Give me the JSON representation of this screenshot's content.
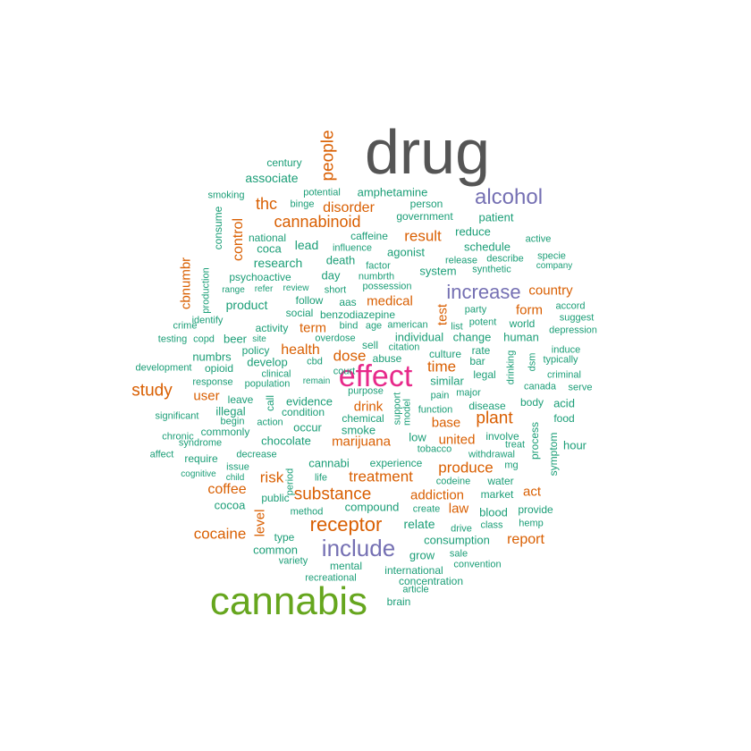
{
  "colors": {
    "tier1": "#555555",
    "tier2": "#e7298a",
    "tier3": "#66a61e",
    "tier4": "#7570b3",
    "tier5": "#d95f02",
    "tier6": "#1b9e77"
  },
  "words": [
    {
      "text": "drug",
      "color": "tier1"
    },
    {
      "text": "cannabis",
      "color": "tier3"
    },
    {
      "text": "effect",
      "color": "tier2"
    },
    {
      "text": "alcohol",
      "color": "tier4"
    },
    {
      "text": "increase",
      "color": "tier4"
    },
    {
      "text": "include",
      "color": "tier4"
    },
    {
      "text": "people",
      "color": "tier5"
    },
    {
      "text": "thc",
      "color": "tier5"
    },
    {
      "text": "disorder",
      "color": "tier5"
    },
    {
      "text": "cannabinoid",
      "color": "tier5"
    },
    {
      "text": "control",
      "color": "tier5"
    },
    {
      "text": "result",
      "color": "tier5"
    },
    {
      "text": "cbnumbr",
      "color": "tier5"
    },
    {
      "text": "country",
      "color": "tier5"
    },
    {
      "text": "medical",
      "color": "tier5"
    },
    {
      "text": "test",
      "color": "tier5"
    },
    {
      "text": "form",
      "color": "tier5"
    },
    {
      "text": "term",
      "color": "tier5"
    },
    {
      "text": "health",
      "color": "tier5"
    },
    {
      "text": "dose",
      "color": "tier5"
    },
    {
      "text": "time",
      "color": "tier5"
    },
    {
      "text": "study",
      "color": "tier5"
    },
    {
      "text": "user",
      "color": "tier5"
    },
    {
      "text": "drink",
      "color": "tier5"
    },
    {
      "text": "plant",
      "color": "tier5"
    },
    {
      "text": "base",
      "color": "tier5"
    },
    {
      "text": "marijuana",
      "color": "tier5"
    },
    {
      "text": "united",
      "color": "tier5"
    },
    {
      "text": "risk",
      "color": "tier5"
    },
    {
      "text": "treatment",
      "color": "tier5"
    },
    {
      "text": "produce",
      "color": "tier5"
    },
    {
      "text": "coffee",
      "color": "tier5"
    },
    {
      "text": "substance",
      "color": "tier5"
    },
    {
      "text": "addiction",
      "color": "tier5"
    },
    {
      "text": "act",
      "color": "tier5"
    },
    {
      "text": "law",
      "color": "tier5"
    },
    {
      "text": "receptor",
      "color": "tier5"
    },
    {
      "text": "cocaine",
      "color": "tier5"
    },
    {
      "text": "level",
      "color": "tier5"
    },
    {
      "text": "report",
      "color": "tier5"
    },
    {
      "text": "century",
      "color": "tier6"
    },
    {
      "text": "associate",
      "color": "tier6"
    },
    {
      "text": "smoking",
      "color": "tier6"
    },
    {
      "text": "potential",
      "color": "tier6"
    },
    {
      "text": "amphetamine",
      "color": "tier6"
    },
    {
      "text": "binge",
      "color": "tier6"
    },
    {
      "text": "person",
      "color": "tier6"
    },
    {
      "text": "government",
      "color": "tier6"
    },
    {
      "text": "patient",
      "color": "tier6"
    },
    {
      "text": "consume",
      "color": "tier6"
    },
    {
      "text": "national",
      "color": "tier6"
    },
    {
      "text": "caffeine",
      "color": "tier6"
    },
    {
      "text": "reduce",
      "color": "tier6"
    },
    {
      "text": "active",
      "color": "tier6"
    },
    {
      "text": "coca",
      "color": "tier6"
    },
    {
      "text": "lead",
      "color": "tier6"
    },
    {
      "text": "influence",
      "color": "tier6"
    },
    {
      "text": "agonist",
      "color": "tier6"
    },
    {
      "text": "schedule",
      "color": "tier6"
    },
    {
      "text": "specie",
      "color": "tier6"
    },
    {
      "text": "research",
      "color": "tier6"
    },
    {
      "text": "death",
      "color": "tier6"
    },
    {
      "text": "release",
      "color": "tier6"
    },
    {
      "text": "describe",
      "color": "tier6"
    },
    {
      "text": "company",
      "color": "tier6"
    },
    {
      "text": "factor",
      "color": "tier6"
    },
    {
      "text": "system",
      "color": "tier6"
    },
    {
      "text": "synthetic",
      "color": "tier6"
    },
    {
      "text": "psychoactive",
      "color": "tier6"
    },
    {
      "text": "day",
      "color": "tier6"
    },
    {
      "text": "numbrth",
      "color": "tier6"
    },
    {
      "text": "production",
      "color": "tier6"
    },
    {
      "text": "range",
      "color": "tier6"
    },
    {
      "text": "refer",
      "color": "tier6"
    },
    {
      "text": "review",
      "color": "tier6"
    },
    {
      "text": "short",
      "color": "tier6"
    },
    {
      "text": "possession",
      "color": "tier6"
    },
    {
      "text": "product",
      "color": "tier6"
    },
    {
      "text": "follow",
      "color": "tier6"
    },
    {
      "text": "aas",
      "color": "tier6"
    },
    {
      "text": "accord",
      "color": "tier6"
    },
    {
      "text": "party",
      "color": "tier6"
    },
    {
      "text": "social",
      "color": "tier6"
    },
    {
      "text": "benzodiazepine",
      "color": "tier6"
    },
    {
      "text": "identify",
      "color": "tier6"
    },
    {
      "text": "potent",
      "color": "tier6"
    },
    {
      "text": "world",
      "color": "tier6"
    },
    {
      "text": "suggest",
      "color": "tier6"
    },
    {
      "text": "crime",
      "color": "tier6"
    },
    {
      "text": "activity",
      "color": "tier6"
    },
    {
      "text": "bind",
      "color": "tier6"
    },
    {
      "text": "age",
      "color": "tier6"
    },
    {
      "text": "american",
      "color": "tier6"
    },
    {
      "text": "list",
      "color": "tier6"
    },
    {
      "text": "depression",
      "color": "tier6"
    },
    {
      "text": "testing",
      "color": "tier6"
    },
    {
      "text": "copd",
      "color": "tier6"
    },
    {
      "text": "beer",
      "color": "tier6"
    },
    {
      "text": "site",
      "color": "tier6"
    },
    {
      "text": "overdose",
      "color": "tier6"
    },
    {
      "text": "individual",
      "color": "tier6"
    },
    {
      "text": "change",
      "color": "tier6"
    },
    {
      "text": "human",
      "color": "tier6"
    },
    {
      "text": "sell",
      "color": "tier6"
    },
    {
      "text": "citation",
      "color": "tier6"
    },
    {
      "text": "rate",
      "color": "tier6"
    },
    {
      "text": "induce",
      "color": "tier6"
    },
    {
      "text": "policy",
      "color": "tier6"
    },
    {
      "text": "numbrs",
      "color": "tier6"
    },
    {
      "text": "develop",
      "color": "tier6"
    },
    {
      "text": "cbd",
      "color": "tier6"
    },
    {
      "text": "abuse",
      "color": "tier6"
    },
    {
      "text": "culture",
      "color": "tier6"
    },
    {
      "text": "bar",
      "color": "tier6"
    },
    {
      "text": "dsm",
      "color": "tier6"
    },
    {
      "text": "typically",
      "color": "tier6"
    },
    {
      "text": "development",
      "color": "tier6"
    },
    {
      "text": "opioid",
      "color": "tier6"
    },
    {
      "text": "clinical",
      "color": "tier6"
    },
    {
      "text": "court",
      "color": "tier6"
    },
    {
      "text": "legal",
      "color": "tier6"
    },
    {
      "text": "drinking",
      "color": "tier6"
    },
    {
      "text": "criminal",
      "color": "tier6"
    },
    {
      "text": "response",
      "color": "tier6"
    },
    {
      "text": "population",
      "color": "tier6"
    },
    {
      "text": "remain",
      "color": "tier6"
    },
    {
      "text": "similar",
      "color": "tier6"
    },
    {
      "text": "canada",
      "color": "tier6"
    },
    {
      "text": "serve",
      "color": "tier6"
    },
    {
      "text": "purpose",
      "color": "tier6"
    },
    {
      "text": "pain",
      "color": "tier6"
    },
    {
      "text": "major",
      "color": "tier6"
    },
    {
      "text": "leave",
      "color": "tier6"
    },
    {
      "text": "call",
      "color": "tier6"
    },
    {
      "text": "evidence",
      "color": "tier6"
    },
    {
      "text": "support",
      "color": "tier6"
    },
    {
      "text": "model",
      "color": "tier6"
    },
    {
      "text": "body",
      "color": "tier6"
    },
    {
      "text": "acid",
      "color": "tier6"
    },
    {
      "text": "illegal",
      "color": "tier6"
    },
    {
      "text": "condition",
      "color": "tier6"
    },
    {
      "text": "function",
      "color": "tier6"
    },
    {
      "text": "disease",
      "color": "tier6"
    },
    {
      "text": "significant",
      "color": "tier6"
    },
    {
      "text": "begin",
      "color": "tier6"
    },
    {
      "text": "action",
      "color": "tier6"
    },
    {
      "text": "chemical",
      "color": "tier6"
    },
    {
      "text": "food",
      "color": "tier6"
    },
    {
      "text": "commonly",
      "color": "tier6"
    },
    {
      "text": "occur",
      "color": "tier6"
    },
    {
      "text": "smoke",
      "color": "tier6"
    },
    {
      "text": "chronic",
      "color": "tier6"
    },
    {
      "text": "syndrome",
      "color": "tier6"
    },
    {
      "text": "chocolate",
      "color": "tier6"
    },
    {
      "text": "low",
      "color": "tier6"
    },
    {
      "text": "involve",
      "color": "tier6"
    },
    {
      "text": "treat",
      "color": "tier6"
    },
    {
      "text": "process",
      "color": "tier6"
    },
    {
      "text": "hour",
      "color": "tier6"
    },
    {
      "text": "symptom",
      "color": "tier6"
    },
    {
      "text": "tobacco",
      "color": "tier6"
    },
    {
      "text": "affect",
      "color": "tier6"
    },
    {
      "text": "require",
      "color": "tier6"
    },
    {
      "text": "decrease",
      "color": "tier6"
    },
    {
      "text": "withdrawal",
      "color": "tier6"
    },
    {
      "text": "cannabi",
      "color": "tier6"
    },
    {
      "text": "experience",
      "color": "tier6"
    },
    {
      "text": "issue",
      "color": "tier6"
    },
    {
      "text": "mg",
      "color": "tier6"
    },
    {
      "text": "cognitive",
      "color": "tier6"
    },
    {
      "text": "child",
      "color": "tier6"
    },
    {
      "text": "period",
      "color": "tier6"
    },
    {
      "text": "life",
      "color": "tier6"
    },
    {
      "text": "codeine",
      "color": "tier6"
    },
    {
      "text": "water",
      "color": "tier6"
    },
    {
      "text": "public",
      "color": "tier6"
    },
    {
      "text": "market",
      "color": "tier6"
    },
    {
      "text": "cocoa",
      "color": "tier6"
    },
    {
      "text": "compound",
      "color": "tier6"
    },
    {
      "text": "create",
      "color": "tier6"
    },
    {
      "text": "blood",
      "color": "tier6"
    },
    {
      "text": "provide",
      "color": "tier6"
    },
    {
      "text": "method",
      "color": "tier6"
    },
    {
      "text": "relate",
      "color": "tier6"
    },
    {
      "text": "drive",
      "color": "tier6"
    },
    {
      "text": "class",
      "color": "tier6"
    },
    {
      "text": "hemp",
      "color": "tier6"
    },
    {
      "text": "type",
      "color": "tier6"
    },
    {
      "text": "consumption",
      "color": "tier6"
    },
    {
      "text": "common",
      "color": "tier6"
    },
    {
      "text": "grow",
      "color": "tier6"
    },
    {
      "text": "sale",
      "color": "tier6"
    },
    {
      "text": "variety",
      "color": "tier6"
    },
    {
      "text": "mental",
      "color": "tier6"
    },
    {
      "text": "convention",
      "color": "tier6"
    },
    {
      "text": "international",
      "color": "tier6"
    },
    {
      "text": "recreational",
      "color": "tier6"
    },
    {
      "text": "concentration",
      "color": "tier6"
    },
    {
      "text": "article",
      "color": "tier6"
    },
    {
      "text": "brain",
      "color": "tier6"
    }
  ]
}
